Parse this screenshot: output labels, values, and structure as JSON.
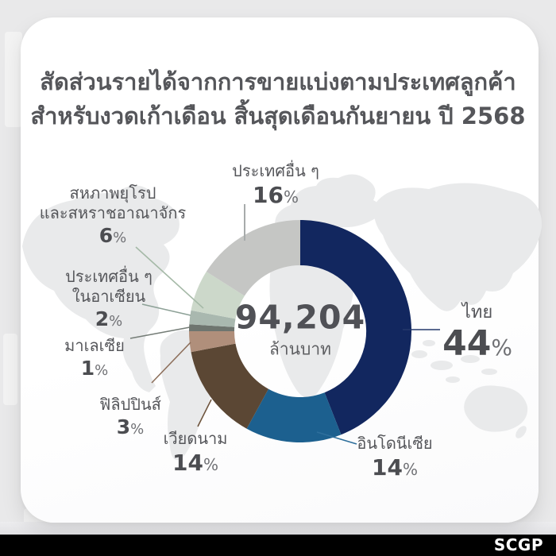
{
  "card": {
    "title_line1": "สัดส่วนรายได้จากการขายแบ่งตามประเทศลูกค้า",
    "title_line2": "สำหรับงวดเก้าเดือน สิ้นสุดเดือนกันยายน ปี 2568",
    "title_color": "#55565a"
  },
  "footer": {
    "brand": "SCGP",
    "bar_color": "#000000",
    "text_color": "#ffffff"
  },
  "chart_data": {
    "type": "pie",
    "donut": true,
    "title": "สัดส่วนรายได้จากการขายแบ่งตามประเทศลูกค้า สำหรับงวดเก้าเดือน สิ้นสุดเดือนกันยายน ปี 2568",
    "center_value": "94,204",
    "center_unit": "ล้านบาท",
    "percent_sign": "%",
    "start_angle_deg": 0,
    "direction": "clockwise",
    "slices": [
      {
        "id": "thailand",
        "label_line1": "ไทย",
        "label_line2": "",
        "value": 44,
        "color": "#12275f",
        "line_color": "#24386b"
      },
      {
        "id": "indonesia",
        "label_line1": "อินโดนีเซีย",
        "label_line2": "",
        "value": 14,
        "color": "#1c608f",
        "line_color": "#2e6f9c"
      },
      {
        "id": "vietnam",
        "label_line1": "เวียดนาม",
        "label_line2": "",
        "value": 14,
        "color": "#5b4734",
        "line_color": "#6d533c"
      },
      {
        "id": "philippines",
        "label_line1": "ฟิลิปปินส์",
        "label_line2": "",
        "value": 3,
        "color": "#b08f7b",
        "line_color": "#8d6f5b"
      },
      {
        "id": "malaysia",
        "label_line1": "มาเลเซีย",
        "label_line2": "",
        "value": 1,
        "color": "#6e756f",
        "line_color": "#757d77"
      },
      {
        "id": "asean-others",
        "label_line1": "ประเทศอื่น ๆ",
        "label_line2": "ในอาเซียน",
        "value": 2,
        "color": "#a9b8af",
        "line_color": "#8da197"
      },
      {
        "id": "eu-uk",
        "label_line1": "สหภาพยุโรป",
        "label_line2": "และสหราชอาณาจักร",
        "value": 6,
        "color": "#ccd8ca",
        "line_color": "#a5b9a7"
      },
      {
        "id": "others",
        "label_line1": "ประเทศอื่น ๆ",
        "label_line2": "",
        "value": 16,
        "color": "#c5c6c4",
        "line_color": "#a7abab"
      }
    ]
  }
}
